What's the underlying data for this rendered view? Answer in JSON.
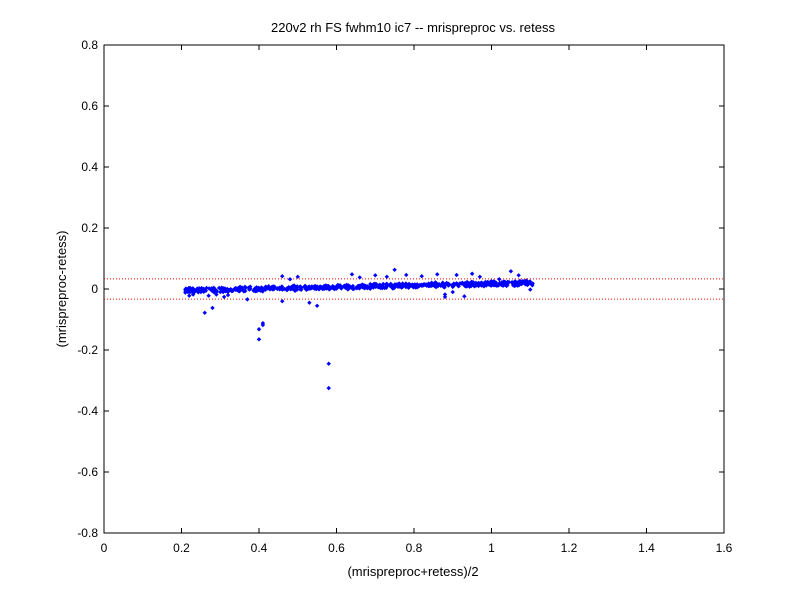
{
  "chart_data": {
    "type": "scatter",
    "title": "220v2 rh FS fwhm10 ic7 -- mrispreproc vs. retess",
    "xlabel": "(mrispreproc+retess)/2",
    "ylabel": "(mrispreproc-retess)",
    "xlim": [
      0,
      1.6
    ],
    "ylim": [
      -0.8,
      0.8
    ],
    "xticks": [
      "0",
      "0.2",
      "0.4",
      "0.6",
      "0.8",
      "1",
      "1.2",
      "1.4",
      "1.6"
    ],
    "yticks": [
      "0.8",
      "0.6",
      "0.4",
      "0.2",
      "0",
      "-0.2",
      "-0.4",
      "-0.6",
      "-0.8"
    ],
    "grid": false,
    "marker_color": "#0000ff",
    "limit_line_color": "#ff0000",
    "limit_lines": [
      0.033,
      -0.033
    ],
    "outliers": {
      "x": [
        0.21,
        0.22,
        0.23,
        0.25,
        0.26,
        0.27,
        0.28,
        0.29,
        0.31,
        0.32,
        0.37,
        0.4,
        0.4,
        0.41,
        0.41,
        0.46,
        0.46,
        0.48,
        0.5,
        0.53,
        0.55,
        0.58,
        0.58,
        0.64,
        0.66,
        0.7,
        0.73,
        0.75,
        0.78,
        0.82,
        0.86,
        0.88,
        0.88,
        0.9,
        0.91,
        0.93,
        0.95,
        0.97,
        1.02,
        1.04,
        1.05,
        1.06,
        1.07,
        1.09,
        1.1
      ],
      "y": [
        -0.012,
        -0.022,
        -0.018,
        -0.01,
        -0.078,
        -0.022,
        -0.062,
        -0.018,
        -0.026,
        -0.02,
        -0.034,
        -0.132,
        -0.165,
        -0.112,
        -0.118,
        0.042,
        -0.04,
        0.032,
        0.04,
        -0.045,
        -0.055,
        -0.245,
        -0.325,
        0.048,
        0.038,
        0.045,
        0.04,
        0.063,
        0.046,
        0.042,
        0.048,
        -0.026,
        -0.018,
        -0.01,
        0.046,
        -0.024,
        0.05,
        0.04,
        0.032,
        0.012,
        0.058,
        0.01,
        0.045,
        0.028,
        -0.002
      ]
    }
  }
}
